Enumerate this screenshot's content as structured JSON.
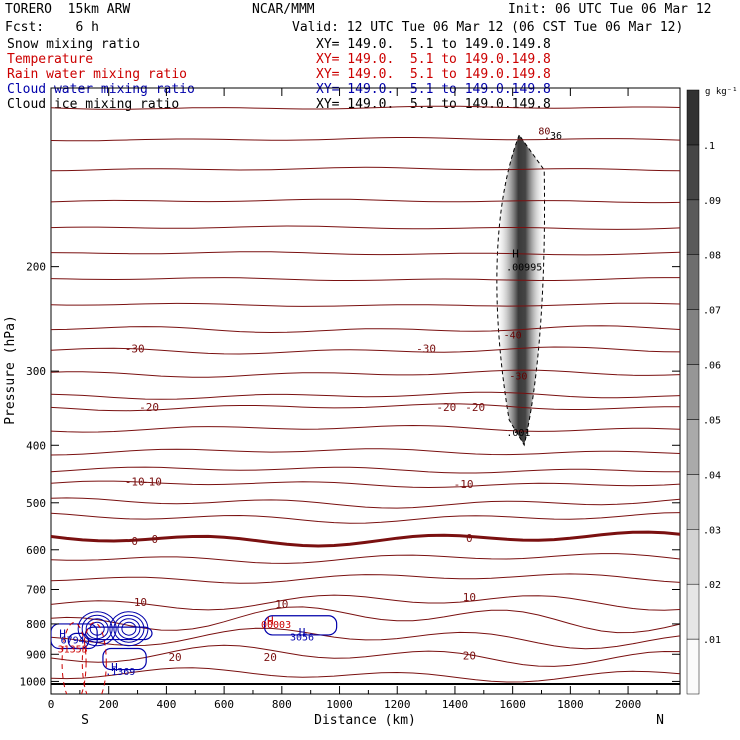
{
  "header": {
    "model": "TORERO  15km ARW",
    "org": "NCAR/MMM",
    "init": "Init: 06 UTC Tue 06 Mar 12",
    "fcst": "Fcst:    6 h",
    "valid": "Valid: 12 UTC Tue 06 Mar 12 (06 CST Tue 06 Mar 12)"
  },
  "legend": [
    {
      "name": "Snow mixing ratio",
      "xy": "XY= 149.0.  5.1 to 149.0.149.8",
      "color": "#000000"
    },
    {
      "name": "Temperature",
      "xy": "XY= 149.0.  5.1 to 149.0.149.8",
      "color": "#cc0000"
    },
    {
      "name": "Rain water mixing ratio",
      "xy": "XY= 149.0.  5.1 to 149.0.149.8",
      "color": "#cc0000"
    },
    {
      "name": "Cloud water mixing ratio",
      "xy": "XY= 149.0.  5.1 to 149.0.149.8",
      "color": "#0000aa"
    },
    {
      "name": "Cloud ice mixing ratio",
      "xy": "XY= 149.0.  5.1 to 149.0.149.8",
      "color": "#000000"
    }
  ],
  "chart_data": {
    "type": "cross-section",
    "xlabel": "Distance (km)",
    "ylabel": "Pressure (hPa)",
    "xlim": [
      0,
      2180
    ],
    "ylim": [
      1050,
      100
    ],
    "y_scale": "log",
    "x_ticks": [
      0,
      200,
      400,
      600,
      800,
      1000,
      1200,
      1400,
      1600,
      1800,
      2000
    ],
    "y_ticks": [
      200,
      300,
      400,
      500,
      600,
      700,
      800,
      900,
      1000
    ],
    "x_end_labels": {
      "left": "S",
      "right": "N"
    },
    "colorbar": {
      "unit": "g kg⁻¹",
      "levels": [
        ".01",
        ".02",
        ".03",
        ".04",
        ".05",
        ".06",
        ".07",
        ".08",
        ".09",
        ".1"
      ],
      "label_values": [
        0.01,
        0.02,
        0.03,
        0.04,
        0.05,
        0.06,
        0.07,
        0.08,
        0.09,
        0.1
      ]
    },
    "temperature_contours": [
      {
        "level": -30,
        "label_x": [
          290,
          1300
        ],
        "label_p": [
          275,
          275
        ]
      },
      {
        "level": -20,
        "label_x": [
          340,
          1370,
          1470
        ],
        "label_p": [
          345,
          345,
          345
        ]
      },
      {
        "level": -10,
        "label_x": [
          290,
          350,
          1430
        ],
        "label_p": [
          460,
          460,
          465
        ]
      },
      {
        "level": 0,
        "label_x": [
          290,
          360,
          1450
        ],
        "label_p": [
          580,
          575,
          573
        ]
      },
      {
        "level": 10,
        "label_x": [
          310,
          800,
          1450
        ],
        "label_p": [
          735,
          740,
          720
        ]
      },
      {
        "level": 20,
        "label_x": [
          430,
          760,
          1450
        ],
        "label_p": [
          910,
          910,
          905
        ]
      }
    ],
    "annotations": [
      {
        "text": ".00995",
        "x": 1640,
        "p": 200,
        "color": "#000000"
      },
      {
        "text": "-40",
        "x": 1600,
        "p": 260,
        "color": "#660000"
      },
      {
        "text": "-30",
        "x": 1620,
        "p": 305,
        "color": "#660000"
      },
      {
        "text": ".001",
        "x": 1620,
        "p": 380,
        "color": "#000000"
      },
      {
        "text": "00003",
        "x": 780,
        "p": 800,
        "color": "#cc0000"
      },
      {
        "text": "3056",
        "x": 870,
        "p": 840,
        "color": "#0000aa"
      },
      {
        "text": "6794",
        "x": 75,
        "p": 850,
        "color": "#0000aa"
      },
      {
        "text": ".1369",
        "x": 240,
        "p": 960,
        "color": "#0000aa"
      },
      {
        "text": "31353",
        "x": 75,
        "p": 880,
        "color": "#cc0000"
      },
      {
        "text": ".36",
        "x": 1740,
        "p": 120,
        "color": "#000000"
      },
      {
        "text": "80",
        "x": 1710,
        "p": 118,
        "color": "#660000"
      }
    ],
    "highs": [
      {
        "text": "H",
        "x": 1610,
        "p": 190,
        "color": "#000000"
      },
      {
        "text": "H",
        "x": 760,
        "p": 790,
        "color": "#cc0000"
      },
      {
        "text": "H",
        "x": 870,
        "p": 825,
        "color": "#0000aa"
      },
      {
        "text": "H",
        "x": 40,
        "p": 830,
        "color": "#0000aa"
      },
      {
        "text": "H",
        "x": 220,
        "p": 945,
        "color": "#0000aa"
      }
    ]
  }
}
